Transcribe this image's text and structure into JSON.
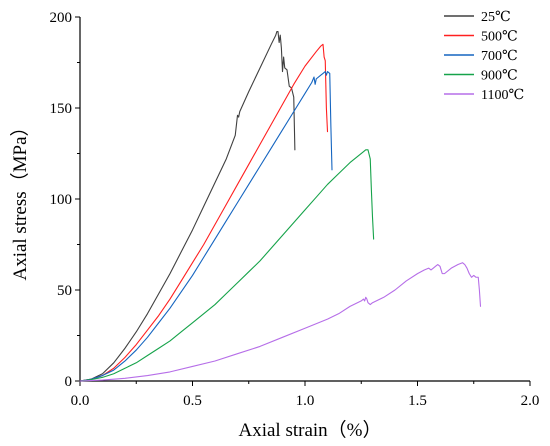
{
  "chart_data": {
    "type": "line",
    "xlabel": "Axial strain（%）",
    "ylabel": "Axial stress（MPa）",
    "xlim": [
      0,
      2.0
    ],
    "ylim": [
      0,
      200
    ],
    "xticks": [
      "0.0",
      "0.5",
      "1.0",
      "1.5",
      "2.0"
    ],
    "yticks": [
      "0",
      "50",
      "100",
      "150",
      "200"
    ],
    "grid": false,
    "legend_position": "top-right",
    "series": [
      {
        "name": "25℃",
        "color": "#404040",
        "points": [
          [
            0,
            0
          ],
          [
            0.05,
            1
          ],
          [
            0.1,
            4
          ],
          [
            0.15,
            10
          ],
          [
            0.2,
            18
          ],
          [
            0.25,
            27
          ],
          [
            0.3,
            37
          ],
          [
            0.35,
            48
          ],
          [
            0.4,
            59
          ],
          [
            0.45,
            71
          ],
          [
            0.5,
            83
          ],
          [
            0.55,
            96
          ],
          [
            0.6,
            109
          ],
          [
            0.65,
            122
          ],
          [
            0.69,
            135
          ],
          [
            0.7,
            146
          ],
          [
            0.705,
            145
          ],
          [
            0.71,
            148
          ],
          [
            0.75,
            159
          ],
          [
            0.8,
            172
          ],
          [
            0.85,
            185
          ],
          [
            0.87,
            190
          ],
          [
            0.875,
            192
          ],
          [
            0.88,
            192
          ],
          [
            0.885,
            186
          ],
          [
            0.89,
            190
          ],
          [
            0.895,
            183
          ],
          [
            0.9,
            170
          ],
          [
            0.905,
            178
          ],
          [
            0.91,
            172
          ],
          [
            0.92,
            171
          ],
          [
            0.93,
            162
          ],
          [
            0.94,
            161
          ],
          [
            0.95,
            156
          ],
          [
            0.955,
            127
          ]
        ]
      },
      {
        "name": "500℃",
        "color": "#ff2020",
        "points": [
          [
            0,
            0
          ],
          [
            0.05,
            1
          ],
          [
            0.1,
            3
          ],
          [
            0.15,
            7
          ],
          [
            0.2,
            13
          ],
          [
            0.25,
            20
          ],
          [
            0.3,
            28
          ],
          [
            0.35,
            36
          ],
          [
            0.4,
            45
          ],
          [
            0.45,
            55
          ],
          [
            0.5,
            65
          ],
          [
            0.55,
            75
          ],
          [
            0.6,
            86
          ],
          [
            0.65,
            97
          ],
          [
            0.7,
            108
          ],
          [
            0.75,
            119
          ],
          [
            0.8,
            130
          ],
          [
            0.85,
            141
          ],
          [
            0.9,
            152
          ],
          [
            0.95,
            163
          ],
          [
            1.0,
            173
          ],
          [
            1.05,
            181
          ],
          [
            1.07,
            184
          ],
          [
            1.08,
            185
          ],
          [
            1.085,
            178
          ],
          [
            1.09,
            176
          ],
          [
            1.095,
            150
          ],
          [
            1.1,
            137
          ]
        ]
      },
      {
        "name": "700℃",
        "color": "#1565c0",
        "points": [
          [
            0,
            0
          ],
          [
            0.05,
            1
          ],
          [
            0.1,
            3
          ],
          [
            0.15,
            6
          ],
          [
            0.2,
            11
          ],
          [
            0.25,
            17
          ],
          [
            0.3,
            24
          ],
          [
            0.35,
            32
          ],
          [
            0.4,
            40
          ],
          [
            0.45,
            49
          ],
          [
            0.5,
            58
          ],
          [
            0.55,
            68
          ],
          [
            0.6,
            78
          ],
          [
            0.65,
            88
          ],
          [
            0.7,
            98
          ],
          [
            0.75,
            108
          ],
          [
            0.8,
            118
          ],
          [
            0.85,
            128
          ],
          [
            0.9,
            138
          ],
          [
            0.95,
            148
          ],
          [
            1.0,
            158
          ],
          [
            1.03,
            164
          ],
          [
            1.04,
            167
          ],
          [
            1.045,
            163
          ],
          [
            1.05,
            166
          ],
          [
            1.07,
            168
          ],
          [
            1.08,
            169
          ],
          [
            1.09,
            170
          ],
          [
            1.095,
            168
          ],
          [
            1.1,
            170
          ],
          [
            1.11,
            169
          ],
          [
            1.115,
            140
          ],
          [
            1.12,
            116
          ]
        ]
      },
      {
        "name": "900℃",
        "color": "#16a34a",
        "points": [
          [
            0,
            0
          ],
          [
            0.05,
            0.8
          ],
          [
            0.1,
            2
          ],
          [
            0.15,
            4
          ],
          [
            0.2,
            7
          ],
          [
            0.25,
            10
          ],
          [
            0.3,
            14
          ],
          [
            0.35,
            18
          ],
          [
            0.4,
            22
          ],
          [
            0.45,
            27
          ],
          [
            0.5,
            32
          ],
          [
            0.55,
            37
          ],
          [
            0.6,
            42
          ],
          [
            0.65,
            48
          ],
          [
            0.7,
            54
          ],
          [
            0.75,
            60
          ],
          [
            0.8,
            66
          ],
          [
            0.85,
            73
          ],
          [
            0.9,
            80
          ],
          [
            0.95,
            87
          ],
          [
            1.0,
            94
          ],
          [
            1.05,
            101
          ],
          [
            1.1,
            108
          ],
          [
            1.15,
            114
          ],
          [
            1.2,
            120
          ],
          [
            1.24,
            124
          ],
          [
            1.26,
            126
          ],
          [
            1.27,
            127
          ],
          [
            1.28,
            127
          ],
          [
            1.29,
            122
          ],
          [
            1.295,
            105
          ],
          [
            1.3,
            90
          ],
          [
            1.305,
            78
          ]
        ]
      },
      {
        "name": "1100℃",
        "color": "#b66ee8",
        "points": [
          [
            0,
            0
          ],
          [
            0.1,
            0.5
          ],
          [
            0.2,
            1.5
          ],
          [
            0.3,
            3
          ],
          [
            0.4,
            5
          ],
          [
            0.5,
            8
          ],
          [
            0.6,
            11
          ],
          [
            0.7,
            15
          ],
          [
            0.8,
            19
          ],
          [
            0.9,
            24
          ],
          [
            1.0,
            29
          ],
          [
            1.1,
            34
          ],
          [
            1.15,
            37
          ],
          [
            1.2,
            41
          ],
          [
            1.25,
            44
          ],
          [
            1.26,
            45
          ],
          [
            1.265,
            44
          ],
          [
            1.27,
            46
          ],
          [
            1.275,
            45
          ],
          [
            1.28,
            43
          ],
          [
            1.29,
            42
          ],
          [
            1.3,
            43
          ],
          [
            1.35,
            46
          ],
          [
            1.4,
            50
          ],
          [
            1.45,
            55
          ],
          [
            1.5,
            59
          ],
          [
            1.53,
            61
          ],
          [
            1.55,
            62
          ],
          [
            1.56,
            61
          ],
          [
            1.57,
            62
          ],
          [
            1.58,
            63
          ],
          [
            1.59,
            64
          ],
          [
            1.6,
            63
          ],
          [
            1.61,
            59
          ],
          [
            1.62,
            59
          ],
          [
            1.65,
            62
          ],
          [
            1.68,
            64
          ],
          [
            1.7,
            65
          ],
          [
            1.71,
            64
          ],
          [
            1.72,
            62
          ],
          [
            1.73,
            59
          ],
          [
            1.74,
            57
          ],
          [
            1.75,
            58
          ],
          [
            1.76,
            57
          ],
          [
            1.77,
            57
          ],
          [
            1.775,
            50
          ],
          [
            1.78,
            41
          ]
        ]
      }
    ]
  }
}
